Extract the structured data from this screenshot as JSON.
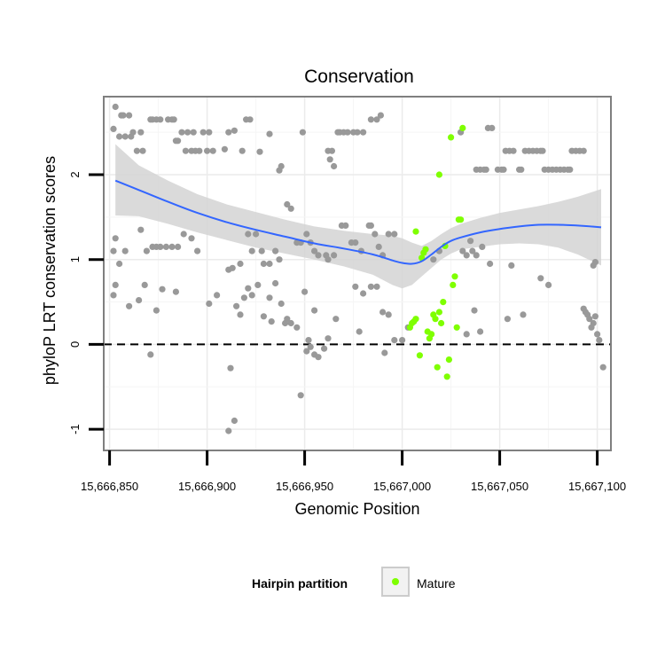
{
  "chart_data": {
    "type": "scatter",
    "title": "Conservation",
    "xlabel": "Genomic Position",
    "ylabel": "phyloP LRT conservation scores",
    "xlim": [
      15666847,
      15667107
    ],
    "ylim": [
      -1.25,
      2.92
    ],
    "x_ticks": [
      15666850,
      15666900,
      15666950,
      15667000,
      15667050,
      15667100
    ],
    "x_tick_labels": [
      "15,666,850",
      "15,666,900",
      "15,666,950",
      "15,667,000",
      "15,667,050",
      "15,667,100"
    ],
    "y_ticks": [
      -1,
      0,
      1,
      2
    ],
    "y_tick_labels": [
      "-1",
      "0",
      "1",
      "2"
    ],
    "grid": true,
    "reference_line": {
      "y": 0,
      "style": "dashed"
    },
    "legend": {
      "title": "Hairpin partition",
      "entries": [
        "Mature"
      ],
      "position": "bottom"
    },
    "colors": {
      "other": "#999999",
      "mature": "#7fff00",
      "smooth": "#3366ff",
      "band": "#d4d4d4"
    },
    "series": [
      {
        "group": "other",
        "points": [
          [
            15666852,
            2.54
          ],
          [
            15666853,
            2.8
          ],
          [
            15666855,
            2.45
          ],
          [
            15666856,
            2.7
          ],
          [
            15666857,
            2.7
          ],
          [
            15666858,
            2.45
          ],
          [
            15666860,
            2.7
          ],
          [
            15666861,
            2.45
          ],
          [
            15666862,
            2.5
          ],
          [
            15666864,
            2.28
          ],
          [
            15666866,
            2.5
          ],
          [
            15666867,
            2.28
          ],
          [
            15666871,
            2.65
          ],
          [
            15666872,
            2.65
          ],
          [
            15666874,
            2.65
          ],
          [
            15666876,
            2.65
          ],
          [
            15666880,
            2.65
          ],
          [
            15666882,
            2.65
          ],
          [
            15666883,
            2.65
          ],
          [
            15666884,
            2.4
          ],
          [
            15666885,
            2.4
          ],
          [
            15666887,
            2.5
          ],
          [
            15666889,
            2.28
          ],
          [
            15666890,
            2.5
          ],
          [
            15666892,
            2.28
          ],
          [
            15666893,
            2.5
          ],
          [
            15666894,
            2.28
          ],
          [
            15666896,
            2.28
          ],
          [
            15666898,
            2.5
          ],
          [
            15666900,
            2.28
          ],
          [
            15666901,
            2.5
          ],
          [
            15666903,
            2.28
          ],
          [
            15666909,
            2.3
          ],
          [
            15666911,
            2.5
          ],
          [
            15666914,
            2.52
          ],
          [
            15666918,
            2.28
          ],
          [
            15666920,
            2.65
          ],
          [
            15666922,
            2.65
          ],
          [
            15666927,
            2.27
          ],
          [
            15666932,
            2.48
          ],
          [
            15666937,
            2.05
          ],
          [
            15666938,
            2.1
          ],
          [
            15666949,
            2.5
          ],
          [
            15666962,
            2.28
          ],
          [
            15666963,
            2.18
          ],
          [
            15666964,
            2.28
          ],
          [
            15666965,
            2.1
          ],
          [
            15666967,
            2.5
          ],
          [
            15666968,
            2.5
          ],
          [
            15666970,
            2.5
          ],
          [
            15666972,
            2.5
          ],
          [
            15666975,
            2.5
          ],
          [
            15666977,
            2.5
          ],
          [
            15666980,
            2.5
          ],
          [
            15666984,
            2.65
          ],
          [
            15666987,
            2.65
          ],
          [
            15666989,
            2.7
          ],
          [
            15667030,
            2.5
          ],
          [
            15667038,
            2.06
          ],
          [
            15667040,
            2.06
          ],
          [
            15667042,
            2.06
          ],
          [
            15667043,
            2.06
          ],
          [
            15667044,
            2.55
          ],
          [
            15667046,
            2.55
          ],
          [
            15667049,
            2.06
          ],
          [
            15667051,
            2.06
          ],
          [
            15667052,
            2.06
          ],
          [
            15667053,
            2.28
          ],
          [
            15667055,
            2.28
          ],
          [
            15667057,
            2.28
          ],
          [
            15667060,
            2.06
          ],
          [
            15667061,
            2.06
          ],
          [
            15667063,
            2.28
          ],
          [
            15667065,
            2.28
          ],
          [
            15667067,
            2.28
          ],
          [
            15667069,
            2.28
          ],
          [
            15667071,
            2.28
          ],
          [
            15667072,
            2.28
          ],
          [
            15667073,
            2.06
          ],
          [
            15667075,
            2.06
          ],
          [
            15667077,
            2.06
          ],
          [
            15667079,
            2.06
          ],
          [
            15667081,
            2.06
          ],
          [
            15667083,
            2.06
          ],
          [
            15667085,
            2.06
          ],
          [
            15667086,
            2.06
          ],
          [
            15667087,
            2.28
          ],
          [
            15667089,
            2.28
          ],
          [
            15667091,
            2.28
          ],
          [
            15667093,
            2.28
          ],
          [
            15666852,
            1.1
          ],
          [
            15666853,
            1.25
          ],
          [
            15666855,
            0.95
          ],
          [
            15666858,
            1.1
          ],
          [
            15666866,
            1.35
          ],
          [
            15666869,
            1.1
          ],
          [
            15666872,
            1.15
          ],
          [
            15666874,
            1.15
          ],
          [
            15666876,
            1.15
          ],
          [
            15666879,
            1.15
          ],
          [
            15666882,
            1.15
          ],
          [
            15666885,
            1.15
          ],
          [
            15666888,
            1.3
          ],
          [
            15666892,
            1.25
          ],
          [
            15666895,
            1.1
          ],
          [
            15666911,
            0.88
          ],
          [
            15666913,
            0.9
          ],
          [
            15666917,
            0.95
          ],
          [
            15666921,
            1.3
          ],
          [
            15666923,
            1.1
          ],
          [
            15666925,
            1.3
          ],
          [
            15666928,
            1.1
          ],
          [
            15666929,
            0.95
          ],
          [
            15666932,
            0.95
          ],
          [
            15666935,
            1.1
          ],
          [
            15666937,
            1.0
          ],
          [
            15666941,
            1.65
          ],
          [
            15666943,
            1.6
          ],
          [
            15666946,
            1.2
          ],
          [
            15666948,
            1.2
          ],
          [
            15666951,
            1.3
          ],
          [
            15666953,
            1.2
          ],
          [
            15666955,
            1.1
          ],
          [
            15666957,
            1.05
          ],
          [
            15666961,
            1.05
          ],
          [
            15666962,
            1.0
          ],
          [
            15666965,
            1.05
          ],
          [
            15666969,
            1.4
          ],
          [
            15666971,
            1.4
          ],
          [
            15666974,
            1.2
          ],
          [
            15666976,
            1.2
          ],
          [
            15666979,
            1.1
          ],
          [
            15666983,
            1.4
          ],
          [
            15666984,
            1.4
          ],
          [
            15666986,
            1.3
          ],
          [
            15666988,
            1.15
          ],
          [
            15666990,
            1.05
          ],
          [
            15666993,
            1.3
          ],
          [
            15666996,
            1.3
          ],
          [
            15667016,
            1.0
          ],
          [
            15667019,
            1.1
          ],
          [
            15667031,
            1.1
          ],
          [
            15667033,
            1.05
          ],
          [
            15667035,
            1.22
          ],
          [
            15667036,
            1.1
          ],
          [
            15667038,
            1.05
          ],
          [
            15667041,
            1.15
          ],
          [
            15667045,
            0.95
          ],
          [
            15667056,
            0.93
          ],
          [
            15667098,
            0.93
          ],
          [
            15667099,
            0.97
          ],
          [
            15666852,
            0.58
          ],
          [
            15666853,
            0.7
          ],
          [
            15666860,
            0.45
          ],
          [
            15666865,
            0.52
          ],
          [
            15666868,
            0.7
          ],
          [
            15666874,
            0.4
          ],
          [
            15666877,
            0.65
          ],
          [
            15666884,
            0.62
          ],
          [
            15666901,
            0.48
          ],
          [
            15666905,
            0.58
          ],
          [
            15666915,
            0.45
          ],
          [
            15666917,
            0.35
          ],
          [
            15666919,
            0.55
          ],
          [
            15666921,
            0.66
          ],
          [
            15666923,
            0.58
          ],
          [
            15666926,
            0.7
          ],
          [
            15666929,
            0.33
          ],
          [
            15666932,
            0.55
          ],
          [
            15666933,
            0.27
          ],
          [
            15666935,
            0.72
          ],
          [
            15666938,
            0.48
          ],
          [
            15666940,
            0.25
          ],
          [
            15666941,
            0.3
          ],
          [
            15666943,
            0.25
          ],
          [
            15666946,
            0.2
          ],
          [
            15666950,
            0.62
          ],
          [
            15666952,
            0.05
          ],
          [
            15666955,
            0.4
          ],
          [
            15666962,
            0.07
          ],
          [
            15666966,
            0.3
          ],
          [
            15666976,
            0.68
          ],
          [
            15666978,
            0.15
          ],
          [
            15666980,
            0.6
          ],
          [
            15666984,
            0.68
          ],
          [
            15666987,
            0.68
          ],
          [
            15666990,
            0.38
          ],
          [
            15666993,
            0.35
          ],
          [
            15666996,
            0.05
          ],
          [
            15667000,
            0.05
          ],
          [
            15667003,
            0.2
          ],
          [
            15667033,
            0.12
          ],
          [
            15667037,
            0.4
          ],
          [
            15667040,
            0.15
          ],
          [
            15667054,
            0.3
          ],
          [
            15667062,
            0.35
          ],
          [
            15667071,
            0.78
          ],
          [
            15667075,
            0.7
          ],
          [
            15667093,
            0.42
          ],
          [
            15667094,
            0.38
          ],
          [
            15667095,
            0.35
          ],
          [
            15667096,
            0.3
          ],
          [
            15667097,
            0.2
          ],
          [
            15667098,
            0.25
          ],
          [
            15667099,
            0.33
          ],
          [
            15667100,
            0.12
          ],
          [
            15667101,
            0.05
          ],
          [
            15667103,
            -0.27
          ],
          [
            15666871,
            -0.12
          ],
          [
            15666912,
            -0.28
          ],
          [
            15666914,
            -0.9
          ],
          [
            15666911,
            -1.02
          ],
          [
            15666948,
            -0.6
          ],
          [
            15666951,
            -0.08
          ],
          [
            15666953,
            -0.03
          ],
          [
            15666955,
            -0.12
          ],
          [
            15666957,
            -0.15
          ],
          [
            15666960,
            -0.05
          ],
          [
            15666991,
            -0.1
          ]
        ]
      },
      {
        "group": "mature",
        "name": "Mature",
        "points": [
          [
            15667007,
            1.33
          ],
          [
            15667004,
            0.2
          ],
          [
            15667005,
            0.25
          ],
          [
            15667006,
            0.27
          ],
          [
            15667007,
            0.3
          ],
          [
            15667009,
            -0.13
          ],
          [
            15667010,
            1.02
          ],
          [
            15667011,
            1.08
          ],
          [
            15667012,
            1.12
          ],
          [
            15667013,
            0.15
          ],
          [
            15667014,
            0.07
          ],
          [
            15667015,
            0.12
          ],
          [
            15667016,
            0.35
          ],
          [
            15667017,
            0.3
          ],
          [
            15667018,
            -0.27
          ],
          [
            15667019,
            2.0
          ],
          [
            15667019,
            0.38
          ],
          [
            15667020,
            0.25
          ],
          [
            15667021,
            0.5
          ],
          [
            15667022,
            1.16
          ],
          [
            15667023,
            -0.38
          ],
          [
            15667024,
            -0.18
          ],
          [
            15667025,
            2.44
          ],
          [
            15667026,
            0.7
          ],
          [
            15667027,
            0.8
          ],
          [
            15667028,
            0.2
          ],
          [
            15667029,
            1.47
          ],
          [
            15667030,
            1.47
          ],
          [
            15667031,
            2.55
          ]
        ]
      }
    ],
    "smooth": {
      "x": [
        15666853,
        15666865,
        15666880,
        15666895,
        15666910,
        15666925,
        15666940,
        15666955,
        15666970,
        15666985,
        15666995,
        15667000,
        15667005,
        15667010,
        15667015,
        15667020,
        15667025,
        15667030,
        15667040,
        15667050,
        15667060,
        15667070,
        15667080,
        15667090,
        15667102
      ],
      "y": [
        1.93,
        1.82,
        1.68,
        1.55,
        1.44,
        1.35,
        1.27,
        1.19,
        1.13,
        1.06,
        0.99,
        0.96,
        0.95,
        0.98,
        1.06,
        1.15,
        1.22,
        1.26,
        1.32,
        1.36,
        1.39,
        1.41,
        1.41,
        1.4,
        1.38
      ],
      "lo": [
        1.52,
        1.51,
        1.42,
        1.32,
        1.23,
        1.14,
        1.07,
        1.0,
        0.92,
        0.82,
        0.7,
        0.66,
        0.7,
        0.8,
        0.9,
        1.0,
        1.07,
        1.12,
        1.15,
        1.18,
        1.19,
        1.18,
        1.14,
        1.06,
        0.93
      ],
      "hi": [
        2.36,
        2.11,
        1.93,
        1.77,
        1.65,
        1.56,
        1.47,
        1.39,
        1.34,
        1.3,
        1.28,
        1.25,
        1.2,
        1.16,
        1.22,
        1.3,
        1.37,
        1.42,
        1.49,
        1.55,
        1.59,
        1.63,
        1.68,
        1.74,
        1.83
      ]
    }
  }
}
